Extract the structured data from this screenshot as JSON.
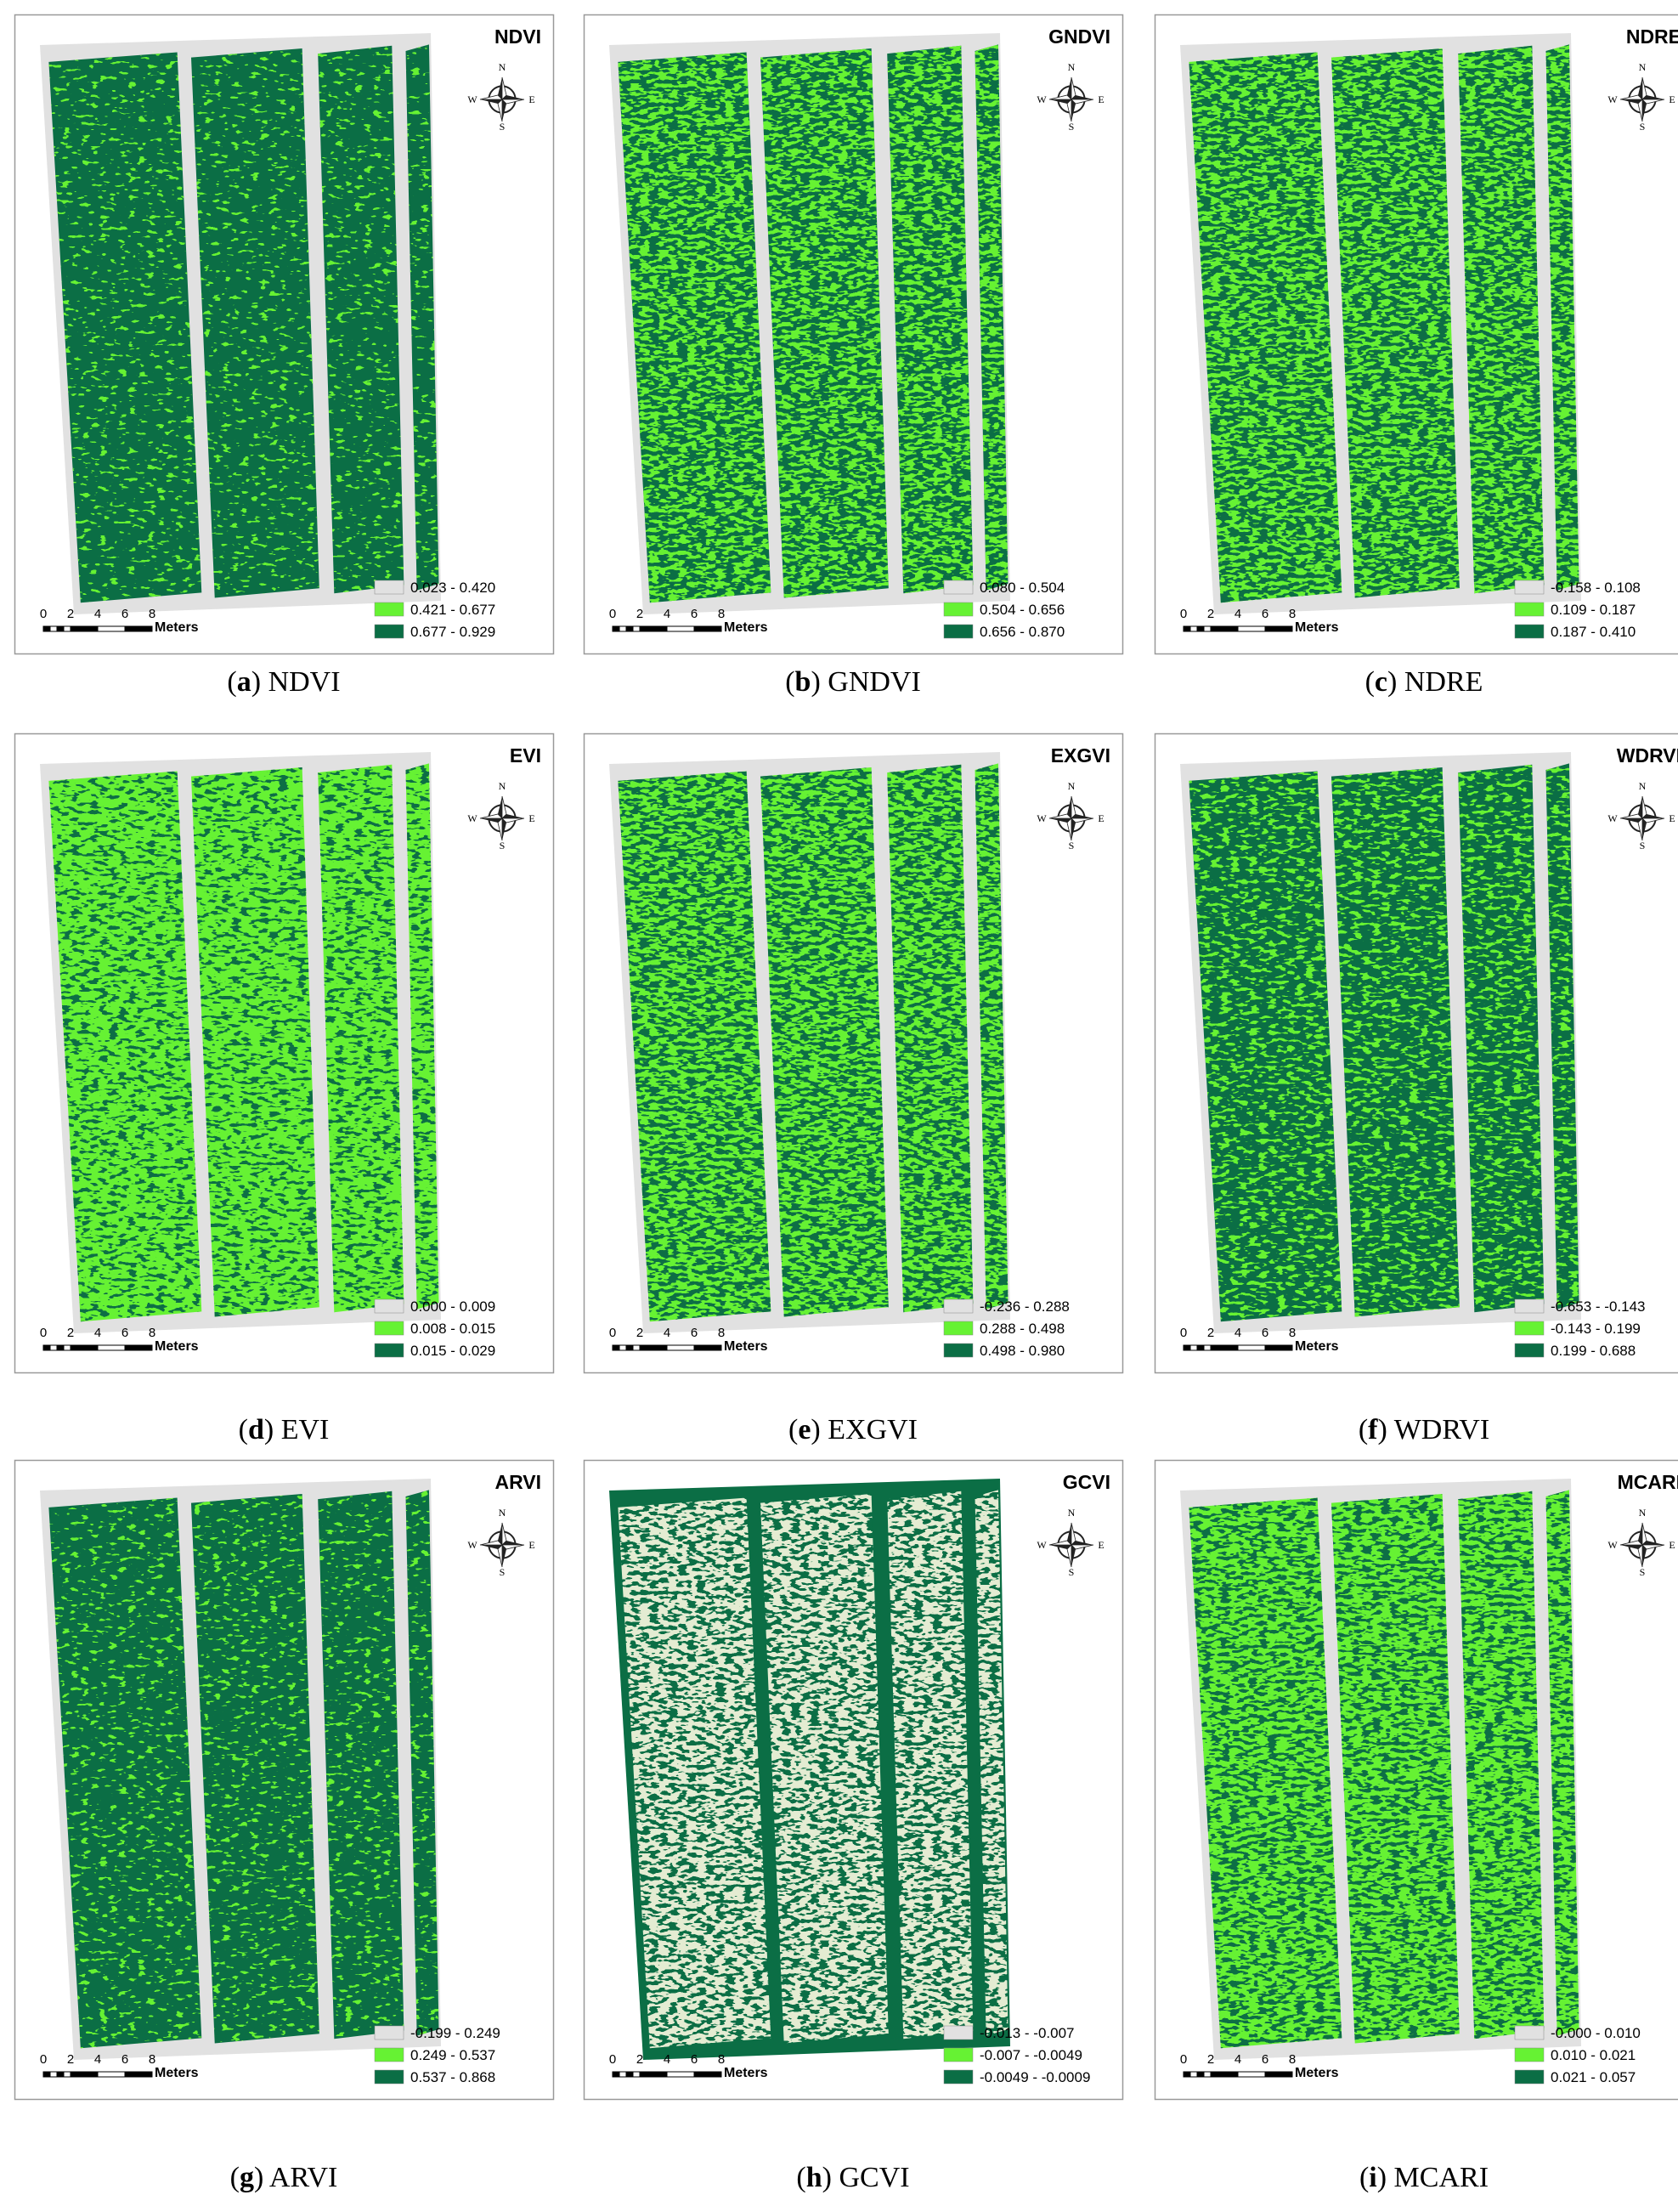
{
  "legend_colors": [
    "#e1e1e1",
    "#66f233",
    "#0b6e45"
  ],
  "compass": {
    "n": "N",
    "e": "E",
    "s": "S",
    "w": "W"
  },
  "scale_bar": {
    "ticks": [
      "0",
      "2",
      "4",
      "6",
      "8"
    ],
    "unit": "Meters"
  },
  "panels": [
    {
      "title": "NDVI",
      "legend": [
        "0.023 - 0.420",
        "0.421 - 0.677",
        "0.677 - 0.929"
      ],
      "caption": "(a) NDVI"
    },
    {
      "title": "GNDVI",
      "legend": [
        "0.080 - 0.504",
        "0.504 - 0.656",
        "0.656 - 0.870"
      ],
      "caption": "(b) GNDVI"
    },
    {
      "title": "NDRE",
      "legend": [
        "-0.158 - 0.108",
        "0.109 - 0.187",
        "0.187 - 0.410"
      ],
      "caption": "(c) NDRE"
    },
    {
      "title": "EVI",
      "legend": [
        "0.000 - 0.009",
        "0.008 - 0.015",
        "0.015 - 0.029"
      ],
      "caption": "(d) EVI"
    },
    {
      "title": "EXGVI",
      "legend": [
        "-0.236 - 0.288",
        "0.288 - 0.498",
        "0.498 - 0.980"
      ],
      "caption": "(e) EXGVI"
    },
    {
      "title": "WDRVI",
      "legend": [
        "-0.653 - -0.143",
        "-0.143 - 0.199",
        "0.199 - 0.688"
      ],
      "caption": "(f) WDRVI"
    },
    {
      "title": "ARVI",
      "legend": [
        "-0.199 - 0.249",
        "0.249 - 0.537",
        "0.537 - 0.868"
      ],
      "caption": "(g) ARVI"
    },
    {
      "title": "GCVI",
      "legend": [
        "-0.013 - -0.007",
        "-0.007 - -0.0049",
        "-0.0049 - -0.0009"
      ],
      "caption": "(h) GCVI"
    },
    {
      "title": "MCARI",
      "legend": [
        "-0.000 - 0.010",
        "0.010 - 0.021",
        "0.021 - 0.057"
      ],
      "caption": "(i) MCARI"
    }
  ]
}
